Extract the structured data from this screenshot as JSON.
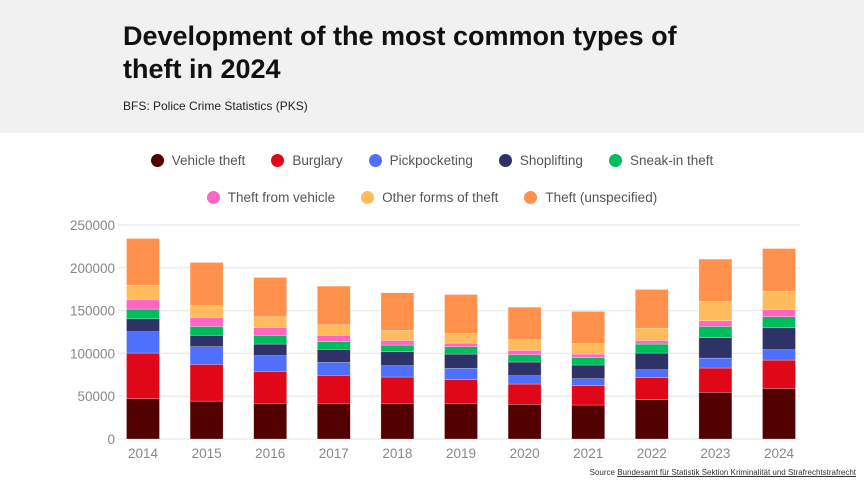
{
  "header": {
    "title": "Development of the most common types of theft in 2024",
    "subtitle": "BFS: Police Crime Statistics (PKS)"
  },
  "source": {
    "label": "Source",
    "link_text": "Bundesamt für Statistik Sektion Kriminalität und Strafrechtstrafrecht"
  },
  "chart_data": {
    "type": "bar",
    "stacked": true,
    "title": "Development of the most common types of theft in 2024",
    "subtitle": "BFS: Police Crime Statistics (PKS)",
    "xlabel": "",
    "ylabel": "",
    "ylim": [
      0,
      250000
    ],
    "yticks": [
      0,
      50000,
      100000,
      150000,
      200000,
      250000
    ],
    "grid": true,
    "legend_placement": "top",
    "categories": [
      "2014",
      "2015",
      "2016",
      "2017",
      "2018",
      "2019",
      "2020",
      "2021",
      "2022",
      "2023",
      "2024"
    ],
    "series": [
      {
        "name": "Vehicle theft",
        "color": "#520000",
        "values": [
          47000,
          44300,
          41600,
          41600,
          41600,
          41600,
          40500,
          39700,
          45900,
          54500,
          59100
        ]
      },
      {
        "name": "Burglary",
        "color": "#e00718",
        "values": [
          53400,
          42800,
          37400,
          32700,
          30800,
          27600,
          23700,
          22500,
          25700,
          28400,
          33100
        ]
      },
      {
        "name": "Pickpocketing",
        "color": "#4f6fff",
        "values": [
          24900,
          20700,
          18300,
          15200,
          13200,
          13300,
          9700,
          8200,
          9300,
          11600,
          12100
        ]
      },
      {
        "name": "Shoplifting",
        "color": "#2e3266",
        "values": [
          15100,
          13200,
          13600,
          15100,
          16300,
          16700,
          16000,
          16000,
          19500,
          23800,
          25600
        ]
      },
      {
        "name": "Sneak-in theft",
        "color": "#00bd5c",
        "values": [
          11300,
          10500,
          10100,
          9000,
          7800,
          8600,
          8500,
          8500,
          10500,
          13200,
          12900
        ]
      },
      {
        "name": "Theft from vehicle",
        "color": "#ff66c4",
        "values": [
          10900,
          10100,
          9000,
          7400,
          5400,
          4200,
          5100,
          4300,
          4200,
          6600,
          8500
        ]
      },
      {
        "name": "Other forms of theft",
        "color": "#ffbb5c",
        "values": [
          17100,
          14400,
          12800,
          12400,
          11700,
          11300,
          12400,
          12400,
          14400,
          22600,
          21400
        ]
      },
      {
        "name": "Theft (unspecified)",
        "color": "#ff914d",
        "values": [
          54500,
          50200,
          45900,
          45200,
          44000,
          45500,
          38100,
          37400,
          45200,
          49400,
          49800
        ]
      }
    ]
  }
}
